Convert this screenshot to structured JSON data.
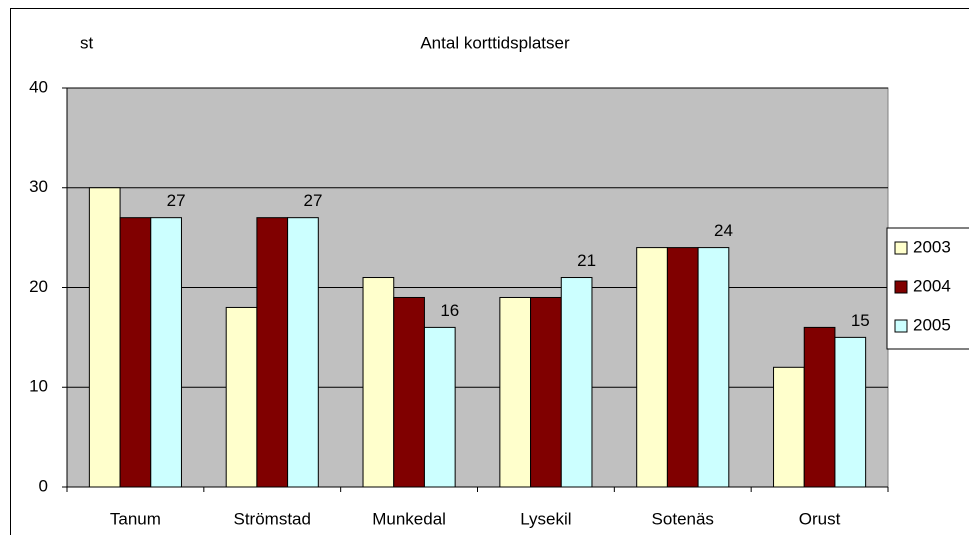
{
  "chart_data": {
    "type": "bar",
    "title": "Antal korttidsplatser",
    "y_label": "st",
    "categories": [
      "Tanum",
      "Strömstad",
      "Munkedal",
      "Lysekil",
      "Sotenäs",
      "Orust"
    ],
    "series": [
      {
        "name": "2003",
        "color": "#ffffcc",
        "values": [
          30,
          18,
          21,
          19,
          24,
          12
        ],
        "show_labels": false
      },
      {
        "name": "2004",
        "color": "#800000",
        "values": [
          27,
          27,
          19,
          19,
          24,
          16
        ],
        "show_labels": false
      },
      {
        "name": "2005",
        "color": "#ccffff",
        "values": [
          27,
          27,
          16,
          21,
          24,
          15
        ],
        "show_labels": true
      }
    ],
    "ylim": [
      0,
      40
    ],
    "yticks": [
      0,
      10,
      20,
      30,
      40
    ],
    "grid": true,
    "legend": "right",
    "plot_background": "#c0c0c0"
  }
}
